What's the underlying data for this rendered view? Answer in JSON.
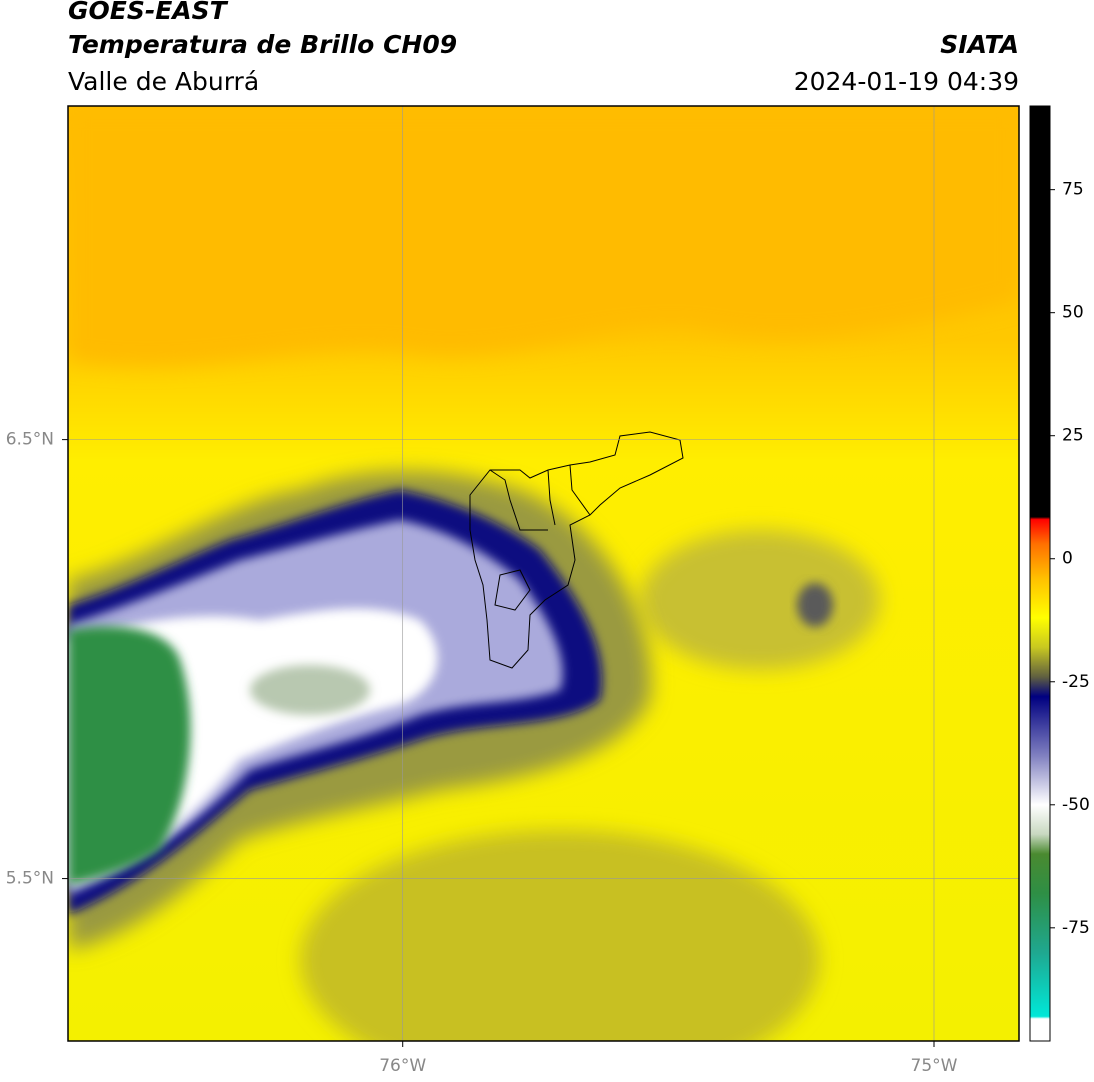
{
  "header": {
    "title": "GOES-EAST",
    "subtitle": "Temperatura de Brillo CH09",
    "region": "Valle de Aburrá",
    "source": "SIATA",
    "datetime": "2024-01-19 04:39"
  },
  "map": {
    "xlim": [
      -76.63,
      -74.84
    ],
    "ylim": [
      5.13,
      7.26
    ],
    "xticks": [
      {
        "value": -76,
        "label": "76°W"
      },
      {
        "value": -75,
        "label": "75°W"
      }
    ],
    "yticks": [
      {
        "value": 6.5,
        "label": "6.5°N"
      },
      {
        "value": 5.5,
        "label": "5.5°N"
      }
    ],
    "grid": true
  },
  "colorbar": {
    "lim": [
      -98,
      92
    ],
    "ticks": [
      75,
      50,
      25,
      0,
      -25,
      -50,
      -75
    ],
    "stops": [
      {
        "value": -98,
        "color": "#ffffff"
      },
      {
        "value": -93.5,
        "color": "#ffffff"
      },
      {
        "value": -93,
        "color": "#00e8d8"
      },
      {
        "value": -80,
        "color": "#1fa890"
      },
      {
        "value": -68,
        "color": "#2e8f45"
      },
      {
        "value": -60,
        "color": "#4a8a30"
      },
      {
        "value": -56,
        "color": "#c8d8c0"
      },
      {
        "value": -50,
        "color": "#ffffff"
      },
      {
        "value": -40,
        "color": "#8080c0"
      },
      {
        "value": -28,
        "color": "#000080"
      },
      {
        "value": -24,
        "color": "#606040"
      },
      {
        "value": -18,
        "color": "#c8c820"
      },
      {
        "value": -12,
        "color": "#ffff00"
      },
      {
        "value": -4,
        "color": "#ffc000"
      },
      {
        "value": 3,
        "color": "#ff7000"
      },
      {
        "value": 8,
        "color": "#ff0000"
      },
      {
        "value": 8.5,
        "color": "#000000"
      },
      {
        "value": 92,
        "color": "#000000"
      }
    ]
  }
}
